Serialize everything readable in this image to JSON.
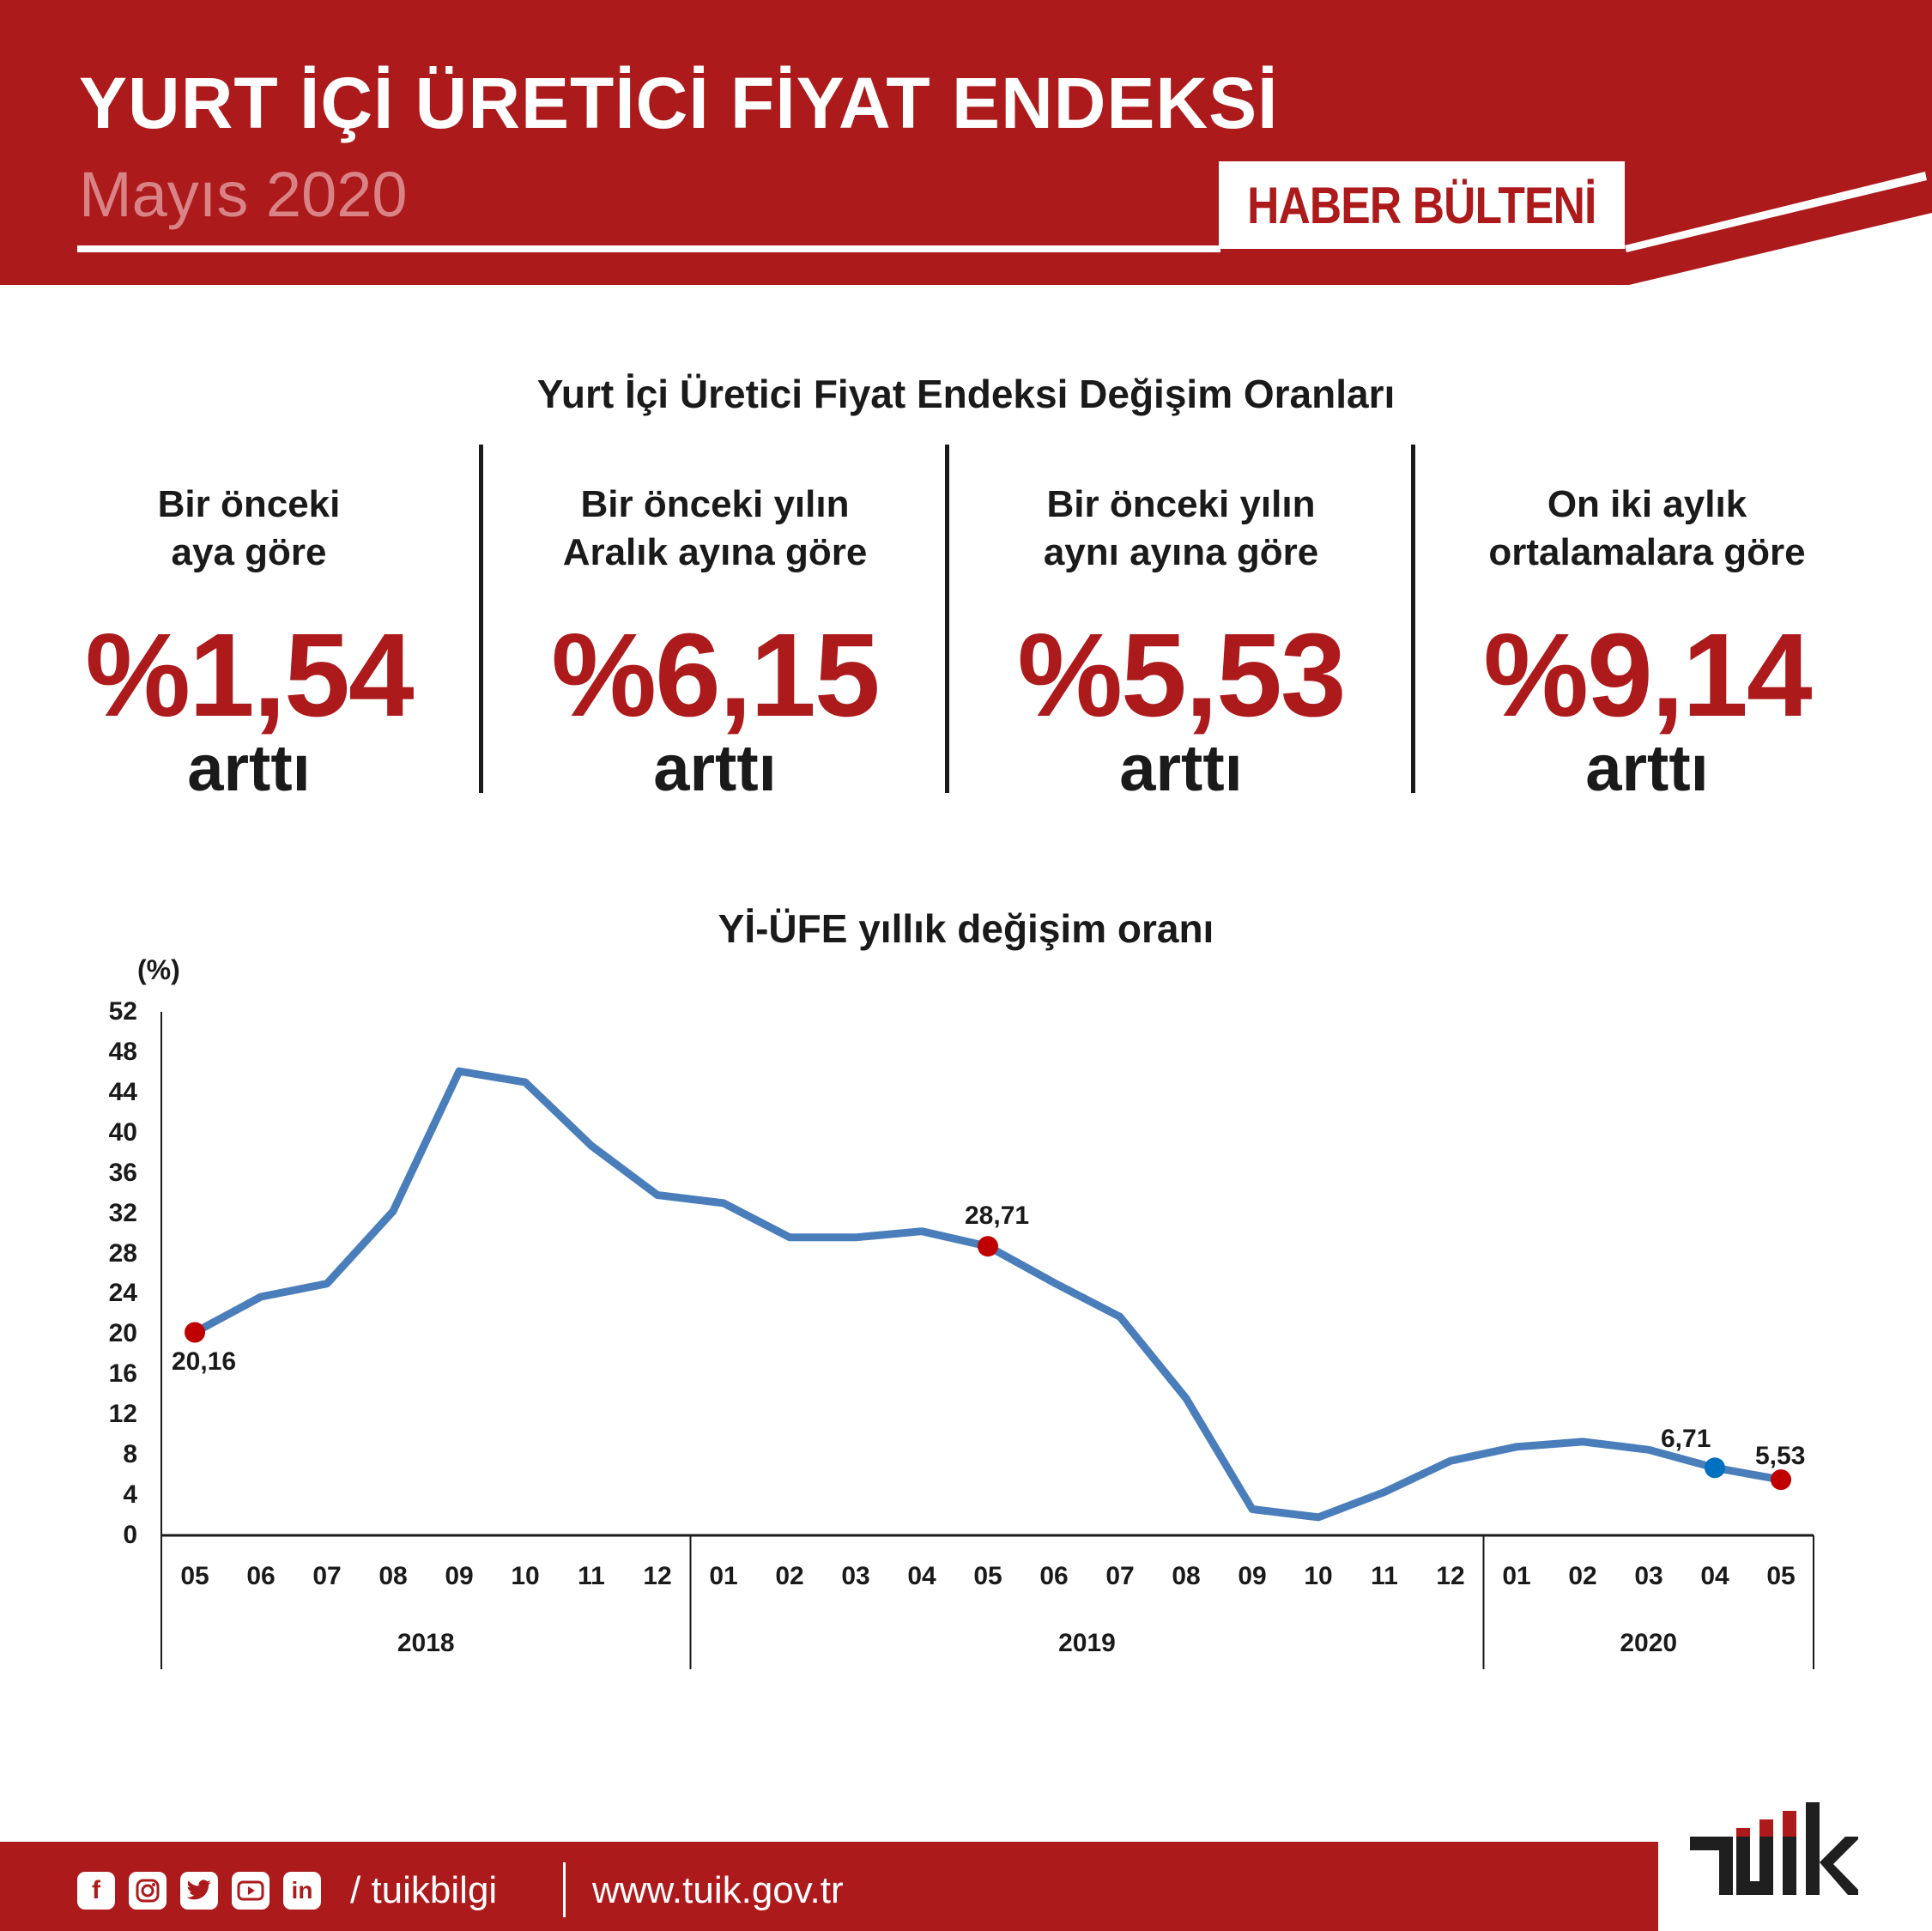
{
  "header": {
    "title": "YURT İÇİ ÜRETİCİ FİYAT ENDEKSİ",
    "period": "Mayıs 2020",
    "badge": "HABER BÜLTENİ",
    "brand_color": "#ad1a1c"
  },
  "summary": {
    "title": "Yurt İçi Üretici Fiyat Endeksi Değişim Oranları",
    "items": [
      {
        "line1": "Bir önceki",
        "line2": "aya göre",
        "value": "%1,54",
        "direction": "arttı"
      },
      {
        "line1": "Bir önceki yılın",
        "line2": "Aralık ayına göre",
        "value": "%6,15",
        "direction": "arttı"
      },
      {
        "line1": "Bir önceki yılın",
        "line2": "aynı ayına göre",
        "value": "%5,53",
        "direction": "arttı"
      },
      {
        "line1": "On iki aylık",
        "line2": "ortalamalara göre",
        "value": "%9,14",
        "direction": "arttı"
      }
    ]
  },
  "chart": {
    "title": "Yİ-ÜFE yıllık değişim oranı",
    "unit": "(%)",
    "yticks": [
      "52",
      "48",
      "44",
      "40",
      "36",
      "32",
      "28",
      "24",
      "20",
      "16",
      "12",
      "8",
      "4",
      "0"
    ],
    "months": [
      "05",
      "06",
      "07",
      "08",
      "09",
      "10",
      "11",
      "12",
      "01",
      "02",
      "03",
      "04",
      "05",
      "06",
      "07",
      "08",
      "09",
      "10",
      "11",
      "12",
      "01",
      "02",
      "03",
      "04",
      "05"
    ],
    "years": [
      {
        "label": "2018",
        "span": 8
      },
      {
        "label": "2019",
        "span": 12
      },
      {
        "label": "2020",
        "span": 5
      }
    ],
    "labels": [
      {
        "text": "20,16"
      },
      {
        "text": "28,71"
      },
      {
        "text": "6,71"
      },
      {
        "text": "5,53"
      }
    ]
  },
  "chart_data": {
    "type": "line",
    "title": "Yİ-ÜFE yıllık değişim oranı",
    "xlabel": "",
    "ylabel": "(%)",
    "ylim": [
      0,
      52
    ],
    "yticks": [
      0,
      4,
      8,
      12,
      16,
      20,
      24,
      28,
      32,
      36,
      40,
      44,
      48,
      52
    ],
    "grid": false,
    "categories": [
      "2018-05",
      "2018-06",
      "2018-07",
      "2018-08",
      "2018-09",
      "2018-10",
      "2018-11",
      "2018-12",
      "2019-01",
      "2019-02",
      "2019-03",
      "2019-04",
      "2019-05",
      "2019-06",
      "2019-07",
      "2019-08",
      "2019-09",
      "2019-10",
      "2019-11",
      "2019-12",
      "2020-01",
      "2020-02",
      "2020-03",
      "2020-04",
      "2020-05"
    ],
    "series": [
      {
        "name": "Yİ-ÜFE yıllık değişim oranı",
        "color": "#4a7ebb",
        "values": [
          20.16,
          23.7,
          25.0,
          32.2,
          46.1,
          45.0,
          38.7,
          33.8,
          33.0,
          29.6,
          29.6,
          30.2,
          28.71,
          25.1,
          21.7,
          13.6,
          2.6,
          1.8,
          4.3,
          7.4,
          8.8,
          9.3,
          8.5,
          6.71,
          5.53
        ]
      }
    ],
    "highlighted_points": [
      {
        "x": "2018-05",
        "value": 20.16,
        "label": "20,16",
        "color": "#c00000"
      },
      {
        "x": "2019-05",
        "value": 28.71,
        "label": "28,71",
        "color": "#c00000"
      },
      {
        "x": "2020-04",
        "value": 6.71,
        "label": "6,71",
        "color": "#0070c0"
      },
      {
        "x": "2020-05",
        "value": 5.53,
        "label": "5,53",
        "color": "#c00000"
      }
    ]
  },
  "footer": {
    "social_icons": [
      "facebook-icon",
      "instagram-icon",
      "twitter-icon",
      "youtube-icon",
      "linkedin-icon"
    ],
    "handle": "/ tuikbilgi",
    "url": "www.tuik.gov.tr",
    "logo": "tuik-logo"
  }
}
